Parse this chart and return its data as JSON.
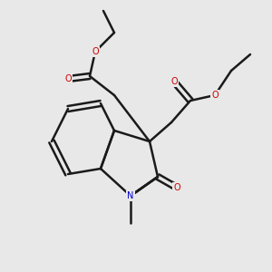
{
  "bg_color": "#e8e8e8",
  "bond_color": "#1a1a1a",
  "O_color": "#cc0000",
  "N_color": "#0000cc",
  "C_color": "#1a1a1a",
  "lw": 1.5,
  "fontsize": 7.5
}
